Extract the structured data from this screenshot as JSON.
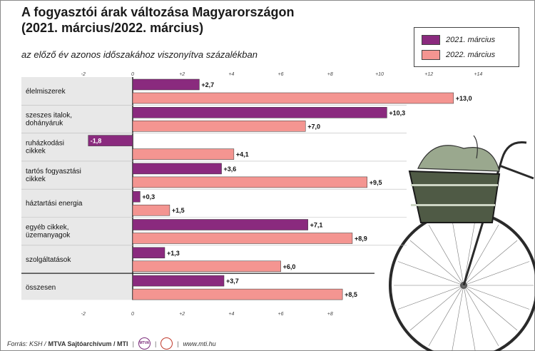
{
  "title_line1": "A fogyasztói árak változása Magyarországon",
  "title_line2": "(2021. március/2022. március)",
  "subtitle": "az előző év azonos időszakához viszonyítva százalékban",
  "footer": {
    "source": "Forrás: KSH /",
    "org": "MTVA Sajtóarchívum / MTI",
    "logo1": "MTVA",
    "url": "www.mti.hu"
  },
  "colors": {
    "series_2021": "#8a2a7e",
    "series_2022": "#f49591",
    "label_band": "#e8e8e8",
    "axis": "#222222"
  },
  "chart_data": {
    "type": "bar",
    "orientation": "horizontal",
    "categories": [
      [
        "élelmiszerek"
      ],
      [
        "szeszes italok,",
        "dohányáruk"
      ],
      [
        "ruházkodási",
        "cikkek"
      ],
      [
        "tartós fogyasztási",
        "cikkek"
      ],
      [
        "háztartási energia"
      ],
      [
        "egyéb cikkek,",
        "üzemanyagok"
      ],
      [
        "szolgáltatások"
      ],
      [
        "összesen"
      ]
    ],
    "series": [
      {
        "name": "2021. március",
        "values": [
          2.7,
          10.3,
          -1.8,
          3.6,
          0.3,
          7.1,
          1.3,
          3.7
        ],
        "labels": [
          "+2,7",
          "+10,3",
          "-1,8",
          "+3,6",
          "+0,3",
          "+7,1",
          "+1,3",
          "+3,7"
        ]
      },
      {
        "name": "2022. március",
        "values": [
          13.0,
          7.0,
          4.1,
          9.5,
          1.5,
          8.9,
          6.0,
          8.5
        ],
        "labels": [
          "+13,0",
          "+7,0",
          "+4,1",
          "+9,5",
          "+1,5",
          "+8,9",
          "+6,0",
          "+8,5"
        ]
      }
    ],
    "xlim": [
      -2,
      14
    ],
    "top_ticks": [
      "-2",
      "0",
      "+2",
      "+4",
      "+6",
      "+8",
      "+10",
      "+12",
      "+14"
    ],
    "top_tick_values": [
      -2,
      0,
      2,
      4,
      6,
      8,
      10,
      12,
      14
    ],
    "bottom_ticks": [
      "-2",
      "0",
      "+2",
      "+4",
      "+6",
      "+8"
    ],
    "bottom_tick_values": [
      -2,
      0,
      2,
      4,
      6,
      8
    ],
    "legend_position": "top-right"
  }
}
